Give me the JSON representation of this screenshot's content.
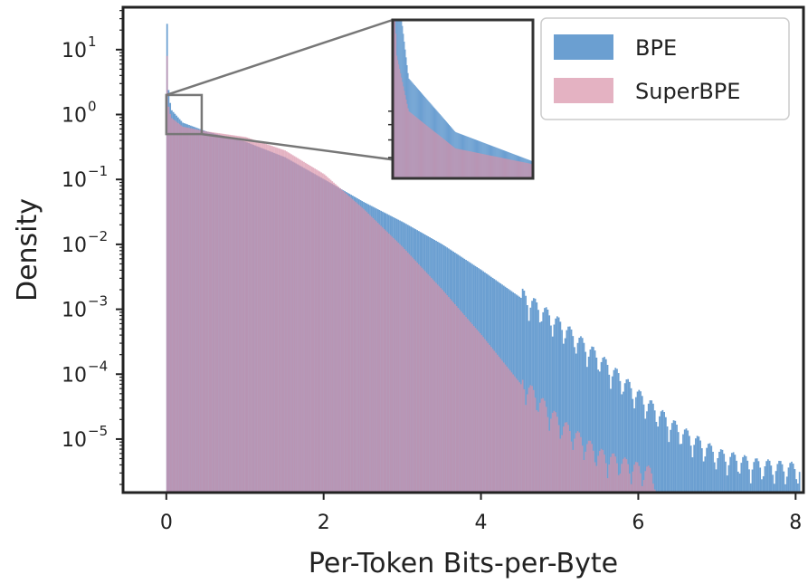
{
  "chart_data": {
    "type": "histogram",
    "title": "",
    "xlabel": "Per-Token Bits-per-Byte",
    "ylabel": "Density",
    "xlim": [
      -0.55,
      8.1
    ],
    "ylim": [
      1.5e-06,
      45
    ],
    "yscale": "log",
    "grid": false,
    "legend_position": "top-right",
    "x_ticks": [
      0,
      2,
      4,
      6,
      8
    ],
    "y_ticks": [
      {
        "value": 1e-05,
        "base": "10",
        "exp": "−5"
      },
      {
        "value": 0.0001,
        "base": "10",
        "exp": "−4"
      },
      {
        "value": 0.001,
        "base": "10",
        "exp": "−3"
      },
      {
        "value": 0.01,
        "base": "10",
        "exp": "−2"
      },
      {
        "value": 0.1,
        "base": "10",
        "exp": "−1"
      },
      {
        "value": 1,
        "base": "10",
        "exp": "0"
      },
      {
        "value": 10,
        "base": "10",
        "exp": "1"
      }
    ],
    "series": [
      {
        "name": "BPE",
        "color": "#3a7fc1",
        "opacity": 0.75,
        "points": [
          [
            0.0,
            25
          ],
          [
            0.01,
            3.0
          ],
          [
            0.05,
            1.2
          ],
          [
            0.2,
            0.75
          ],
          [
            0.5,
            0.55
          ],
          [
            1.0,
            0.38
          ],
          [
            1.5,
            0.22
          ],
          [
            2.0,
            0.1
          ],
          [
            2.5,
            0.045
          ],
          [
            3.0,
            0.022
          ],
          [
            3.5,
            0.01
          ],
          [
            4.0,
            0.004
          ],
          [
            4.5,
            0.0015
          ],
          [
            5.0,
            0.0005
          ],
          [
            5.5,
            0.00015
          ],
          [
            6.0,
            4e-05
          ],
          [
            6.5,
            1.2e-05
          ],
          [
            7.0,
            5e-06
          ],
          [
            7.5,
            3.5e-06
          ],
          [
            8.05,
            3e-06
          ]
        ]
      },
      {
        "name": "SuperBPE",
        "color": "#d891a8",
        "opacity": 0.7,
        "points": [
          [
            0.0,
            8
          ],
          [
            0.01,
            1.5
          ],
          [
            0.05,
            0.9
          ],
          [
            0.2,
            0.65
          ],
          [
            0.5,
            0.55
          ],
          [
            1.0,
            0.45
          ],
          [
            1.5,
            0.28
          ],
          [
            2.0,
            0.12
          ],
          [
            2.5,
            0.035
          ],
          [
            3.0,
            0.009
          ],
          [
            3.5,
            0.002
          ],
          [
            4.0,
            0.0004
          ],
          [
            4.5,
            7e-05
          ],
          [
            5.0,
            1.5e-05
          ],
          [
            5.5,
            5e-06
          ],
          [
            6.0,
            3e-06
          ],
          [
            6.2,
            2.5e-06
          ]
        ]
      }
    ],
    "zoom_box": {
      "x": [
        0.0,
        0.45
      ],
      "y": [
        0.5,
        2.0
      ]
    }
  }
}
